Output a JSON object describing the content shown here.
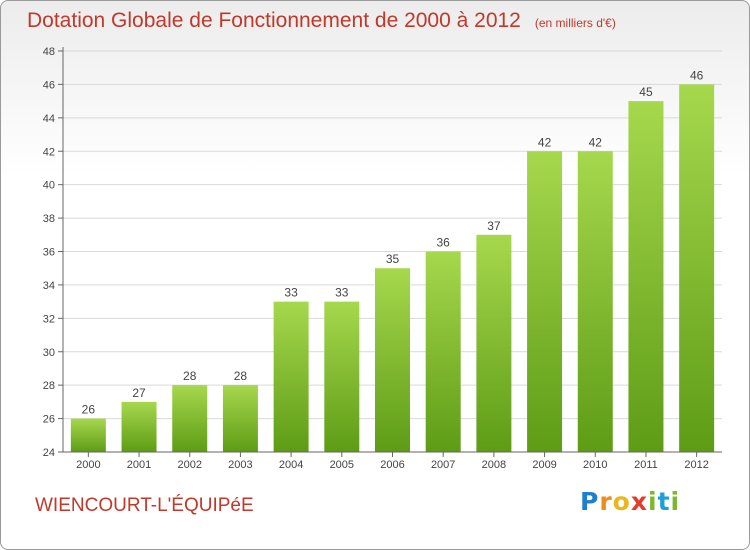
{
  "title": "Dotation Globale de Fonctionnement de 2000 à 2012",
  "subtitle": "(en milliers d'€)",
  "commune": "WIENCOURT-L'ÉQUIPéE",
  "logo": {
    "letters": [
      "P",
      "r",
      "o",
      "x",
      "i",
      "t",
      "i"
    ],
    "colors": [
      "#1f7fcf",
      "#f08a1c",
      "#e8b81c",
      "#e23c2a",
      "#7cb82f",
      "#1f9fd8",
      "#7cb82f"
    ]
  },
  "colors": {
    "bar_light": "#a6d84d",
    "bar_dark": "#5e9c16",
    "title": "#c0392b",
    "grid": "#d9d9d9"
  },
  "chart_data": {
    "type": "bar",
    "title": "Dotation Globale de Fonctionnement de 2000 à 2012",
    "subtitle": "(en milliers d'€)",
    "categories": [
      "2000",
      "2001",
      "2002",
      "2003",
      "2004",
      "2005",
      "2006",
      "2007",
      "2008",
      "2009",
      "2010",
      "2011",
      "2012"
    ],
    "values": [
      26,
      27,
      28,
      28,
      33,
      33,
      35,
      36,
      37,
      42,
      42,
      45,
      46
    ],
    "ylim": [
      24,
      48
    ],
    "yticks": [
      24,
      26,
      28,
      30,
      32,
      34,
      36,
      38,
      40,
      42,
      44,
      46,
      48
    ],
    "grid": true,
    "data_labels": true,
    "xlabel": "",
    "ylabel": ""
  }
}
